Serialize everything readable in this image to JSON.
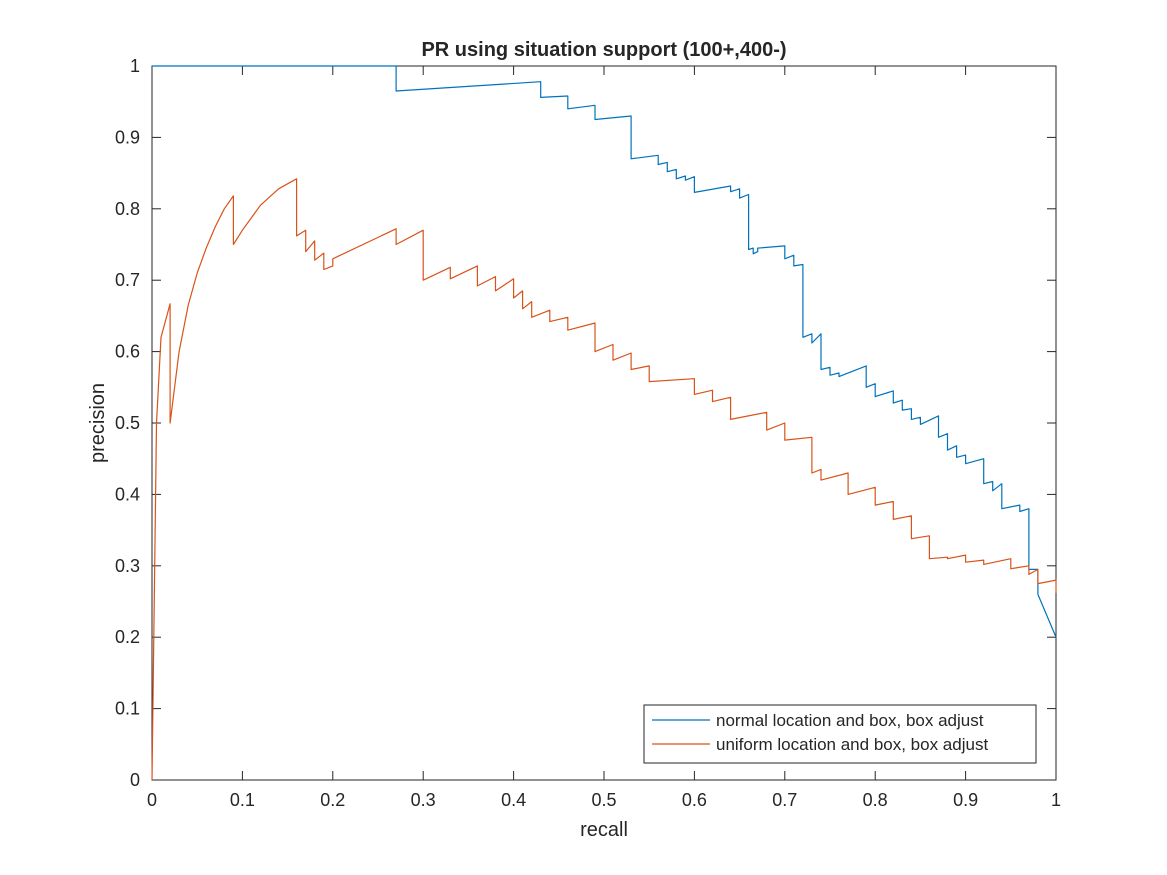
{
  "chart_data": {
    "type": "line",
    "title": "PR using situation support (100+,400-)",
    "xlabel": "recall",
    "ylabel": "precision",
    "xlim": [
      0,
      1
    ],
    "ylim": [
      0,
      1
    ],
    "xticks": [
      0,
      0.1,
      0.2,
      0.3,
      0.4,
      0.5,
      0.6,
      0.7,
      0.8,
      0.9,
      1
    ],
    "yticks": [
      0,
      0.1,
      0.2,
      0.3,
      0.4,
      0.5,
      0.6,
      0.7,
      0.8,
      0.9,
      1
    ],
    "xtick_labels": [
      "0",
      "0.1",
      "0.2",
      "0.3",
      "0.4",
      "0.5",
      "0.6",
      "0.7",
      "0.8",
      "0.9",
      "1"
    ],
    "ytick_labels": [
      "0",
      "0.1",
      "0.2",
      "0.3",
      "0.4",
      "0.5",
      "0.6",
      "0.7",
      "0.8",
      "0.9",
      "1"
    ],
    "grid": false,
    "legend_position": "bottom-right",
    "series": [
      {
        "name": "normal location and box, box adjust",
        "color": "#0072BD",
        "x": [
          0,
          0.27,
          0.27,
          0.43,
          0.43,
          0.46,
          0.46,
          0.49,
          0.49,
          0.53,
          0.53,
          0.56,
          0.56,
          0.57,
          0.57,
          0.58,
          0.58,
          0.59,
          0.59,
          0.6,
          0.6,
          0.64,
          0.64,
          0.65,
          0.65,
          0.66,
          0.66,
          0.665,
          0.665,
          0.67,
          0.67,
          0.7,
          0.7,
          0.71,
          0.71,
          0.72,
          0.72,
          0.73,
          0.73,
          0.74,
          0.74,
          0.75,
          0.75,
          0.76,
          0.76,
          0.79,
          0.79,
          0.8,
          0.8,
          0.82,
          0.82,
          0.83,
          0.83,
          0.84,
          0.84,
          0.85,
          0.85,
          0.87,
          0.87,
          0.88,
          0.88,
          0.89,
          0.89,
          0.9,
          0.9,
          0.92,
          0.92,
          0.93,
          0.93,
          0.94,
          0.94,
          0.96,
          0.96,
          0.97,
          0.97,
          0.98,
          0.98,
          1
        ],
        "y": [
          1,
          1,
          0.965,
          0.978,
          0.956,
          0.958,
          0.94,
          0.945,
          0.925,
          0.93,
          0.87,
          0.875,
          0.862,
          0.865,
          0.852,
          0.855,
          0.842,
          0.846,
          0.84,
          0.845,
          0.823,
          0.832,
          0.824,
          0.828,
          0.815,
          0.82,
          0.743,
          0.745,
          0.737,
          0.74,
          0.745,
          0.748,
          0.73,
          0.735,
          0.72,
          0.722,
          0.62,
          0.625,
          0.612,
          0.625,
          0.575,
          0.578,
          0.567,
          0.57,
          0.565,
          0.58,
          0.55,
          0.555,
          0.537,
          0.545,
          0.528,
          0.532,
          0.518,
          0.52,
          0.505,
          0.508,
          0.498,
          0.51,
          0.48,
          0.485,
          0.462,
          0.468,
          0.452,
          0.455,
          0.443,
          0.45,
          0.415,
          0.418,
          0.405,
          0.415,
          0.38,
          0.385,
          0.376,
          0.38,
          0.295,
          0.295,
          0.26,
          0.2
        ]
      },
      {
        "name": "uniform location and box, box adjust",
        "color": "#D95319",
        "x": [
          0,
          0.005,
          0.01,
          0.02,
          0.02,
          0.03,
          0.04,
          0.05,
          0.06,
          0.07,
          0.08,
          0.09,
          0.09,
          0.1,
          0.12,
          0.14,
          0.16,
          0.16,
          0.17,
          0.17,
          0.18,
          0.18,
          0.19,
          0.19,
          0.2,
          0.2,
          0.27,
          0.27,
          0.3,
          0.3,
          0.33,
          0.33,
          0.36,
          0.36,
          0.38,
          0.38,
          0.4,
          0.4,
          0.41,
          0.41,
          0.42,
          0.42,
          0.44,
          0.44,
          0.46,
          0.46,
          0.49,
          0.49,
          0.51,
          0.51,
          0.53,
          0.53,
          0.55,
          0.55,
          0.6,
          0.6,
          0.62,
          0.62,
          0.64,
          0.64,
          0.68,
          0.68,
          0.7,
          0.7,
          0.73,
          0.73,
          0.74,
          0.74,
          0.77,
          0.77,
          0.8,
          0.8,
          0.82,
          0.82,
          0.84,
          0.84,
          0.86,
          0.86,
          0.88,
          0.88,
          0.9,
          0.9,
          0.92,
          0.92,
          0.95,
          0.95,
          0.97,
          0.97,
          0.98,
          0.98,
          1,
          1
        ],
        "y": [
          0,
          0.5,
          0.62,
          0.667,
          0.5,
          0.6,
          0.665,
          0.71,
          0.745,
          0.775,
          0.8,
          0.818,
          0.75,
          0.77,
          0.805,
          0.828,
          0.842,
          0.762,
          0.77,
          0.74,
          0.755,
          0.728,
          0.738,
          0.715,
          0.72,
          0.73,
          0.772,
          0.75,
          0.77,
          0.7,
          0.718,
          0.702,
          0.72,
          0.692,
          0.705,
          0.685,
          0.702,
          0.675,
          0.685,
          0.66,
          0.67,
          0.648,
          0.658,
          0.642,
          0.648,
          0.63,
          0.64,
          0.6,
          0.61,
          0.588,
          0.598,
          0.575,
          0.58,
          0.558,
          0.562,
          0.54,
          0.546,
          0.53,
          0.536,
          0.505,
          0.515,
          0.49,
          0.5,
          0.476,
          0.48,
          0.43,
          0.435,
          0.42,
          0.43,
          0.4,
          0.41,
          0.385,
          0.39,
          0.365,
          0.37,
          0.338,
          0.342,
          0.31,
          0.312,
          0.31,
          0.315,
          0.305,
          0.308,
          0.302,
          0.31,
          0.296,
          0.3,
          0.288,
          0.295,
          0.275,
          0.28,
          0.262
        ]
      }
    ]
  }
}
